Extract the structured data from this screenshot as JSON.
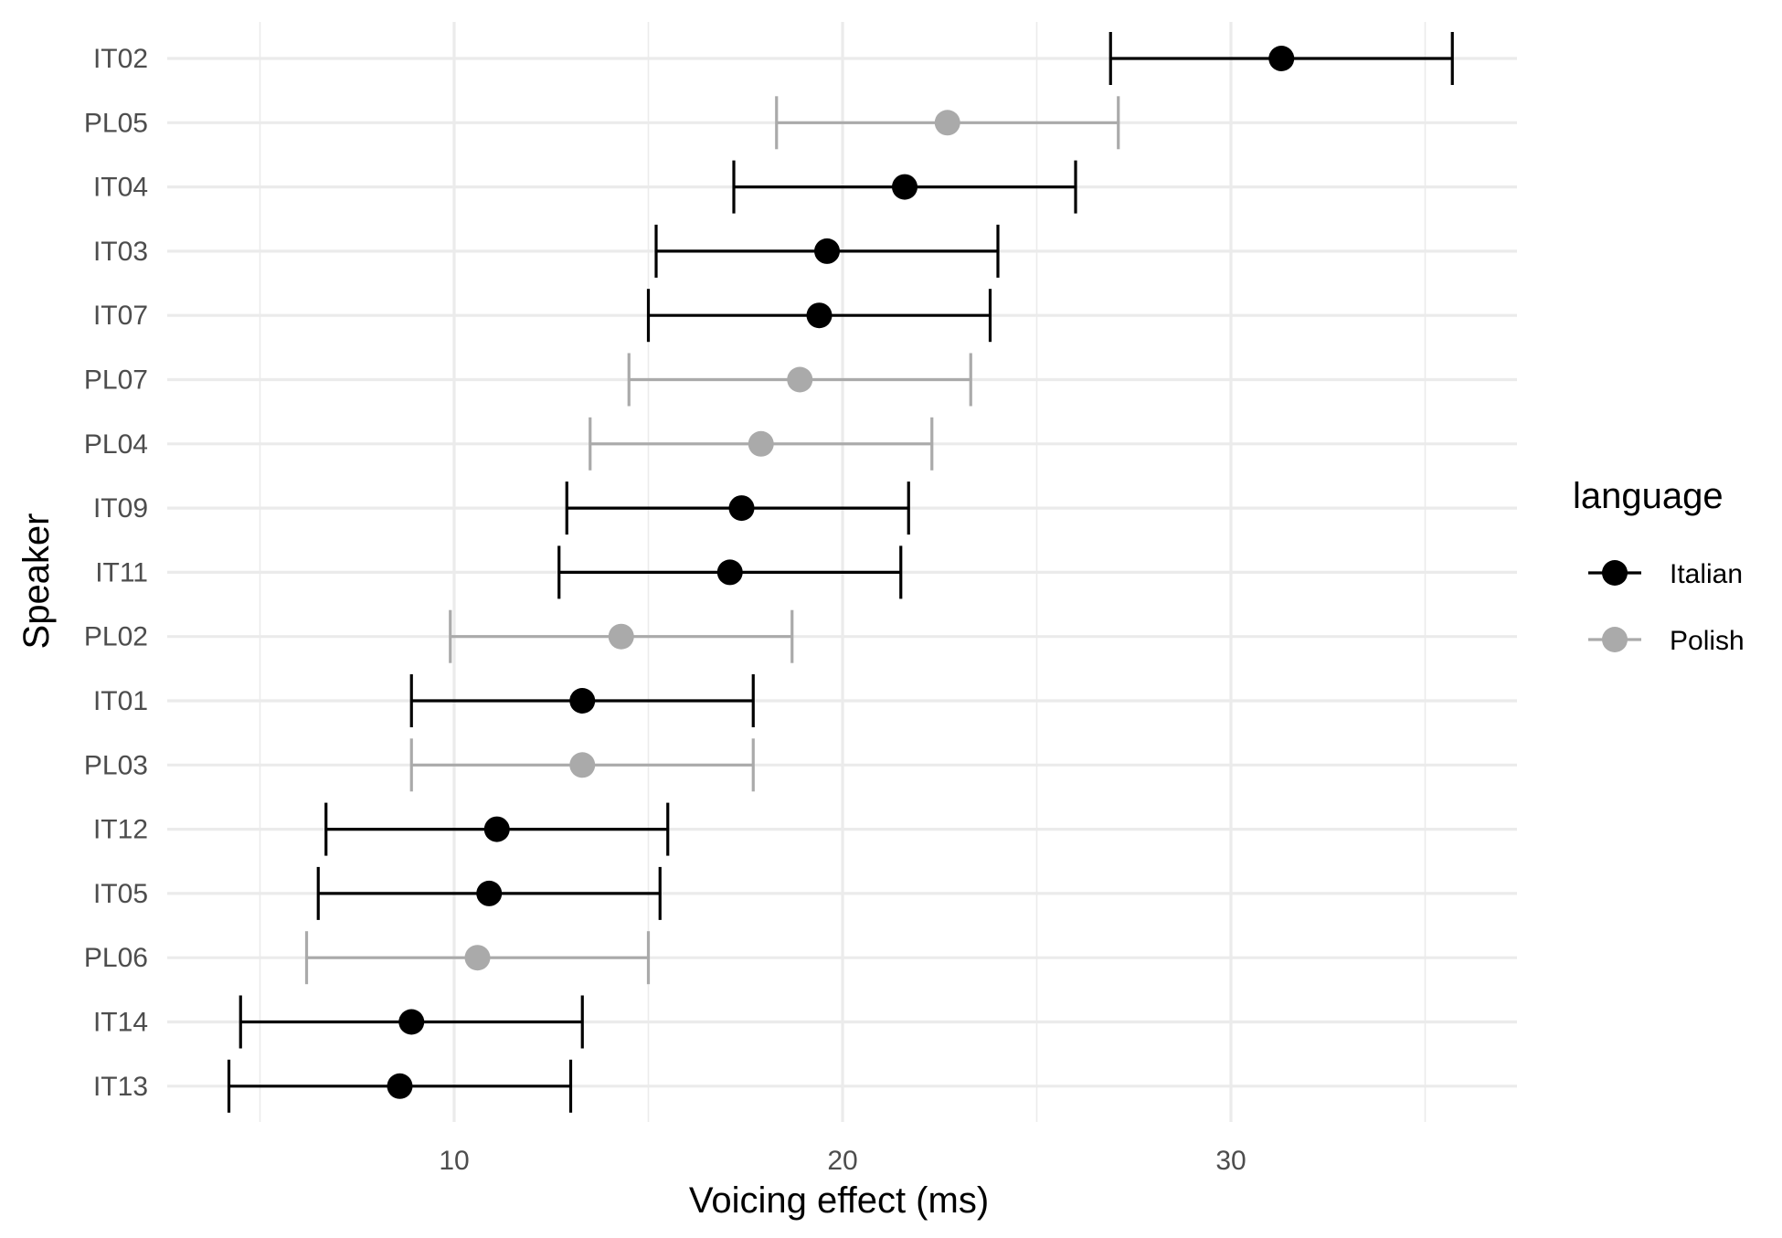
{
  "chart_data": {
    "type": "scatter",
    "subtype": "dot-and-whisker",
    "xlabel": "Voicing effect (ms)",
    "ylabel": "Speaker",
    "xlim": [
      3,
      37.8
    ],
    "x_major_ticks": [
      10,
      20,
      30
    ],
    "x_minor_ticks": [
      5,
      15,
      25,
      35
    ],
    "x_tick_labels": [
      "10",
      "20",
      "30"
    ],
    "grid": true,
    "legend": {
      "title": "language",
      "position": "right",
      "entries": [
        {
          "name": "Italian",
          "color": "#000000"
        },
        {
          "name": "Polish",
          "color": "#aaaaaa"
        }
      ]
    },
    "points": [
      {
        "speaker": "IT02",
        "language": "Italian",
        "estimate": 31.3,
        "lower": 26.9,
        "upper": 35.7
      },
      {
        "speaker": "PL05",
        "language": "Polish",
        "estimate": 22.7,
        "lower": 18.3,
        "upper": 27.1
      },
      {
        "speaker": "IT04",
        "language": "Italian",
        "estimate": 21.6,
        "lower": 17.2,
        "upper": 26.0
      },
      {
        "speaker": "IT03",
        "language": "Italian",
        "estimate": 19.6,
        "lower": 15.2,
        "upper": 24.0
      },
      {
        "speaker": "IT07",
        "language": "Italian",
        "estimate": 19.4,
        "lower": 15.0,
        "upper": 23.8
      },
      {
        "speaker": "PL07",
        "language": "Polish",
        "estimate": 18.9,
        "lower": 14.5,
        "upper": 23.3
      },
      {
        "speaker": "PL04",
        "language": "Polish",
        "estimate": 17.9,
        "lower": 13.5,
        "upper": 22.3
      },
      {
        "speaker": "IT09",
        "language": "Italian",
        "estimate": 17.4,
        "lower": 12.9,
        "upper": 21.7
      },
      {
        "speaker": "IT11",
        "language": "Italian",
        "estimate": 17.1,
        "lower": 12.7,
        "upper": 21.5
      },
      {
        "speaker": "PL02",
        "language": "Polish",
        "estimate": 14.3,
        "lower": 9.9,
        "upper": 18.7
      },
      {
        "speaker": "IT01",
        "language": "Italian",
        "estimate": 13.3,
        "lower": 8.9,
        "upper": 17.7
      },
      {
        "speaker": "PL03",
        "language": "Polish",
        "estimate": 13.3,
        "lower": 8.9,
        "upper": 17.7
      },
      {
        "speaker": "IT12",
        "language": "Italian",
        "estimate": 11.1,
        "lower": 6.7,
        "upper": 15.5
      },
      {
        "speaker": "IT05",
        "language": "Italian",
        "estimate": 10.9,
        "lower": 6.5,
        "upper": 15.3
      },
      {
        "speaker": "PL06",
        "language": "Polish",
        "estimate": 10.6,
        "lower": 6.2,
        "upper": 15.0
      },
      {
        "speaker": "IT14",
        "language": "Italian",
        "estimate": 8.9,
        "lower": 4.5,
        "upper": 13.3
      },
      {
        "speaker": "IT13",
        "language": "Italian",
        "estimate": 8.6,
        "lower": 4.2,
        "upper": 13.0
      }
    ]
  }
}
